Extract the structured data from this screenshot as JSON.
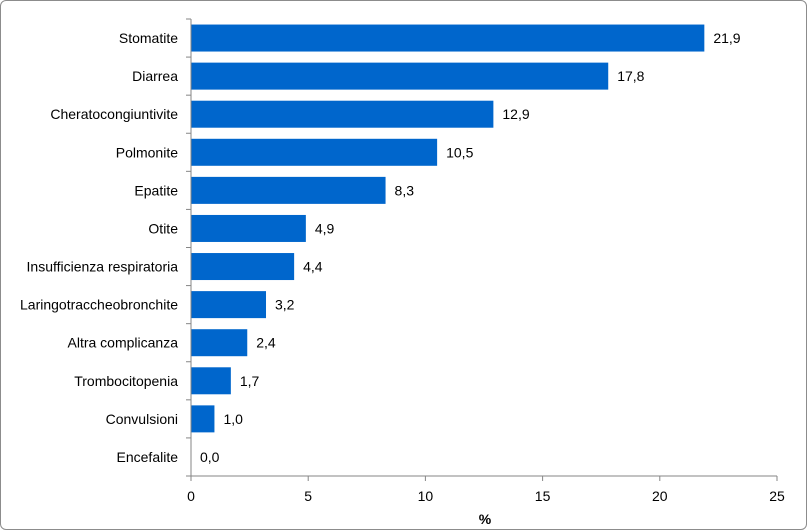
{
  "chart_data": {
    "type": "bar",
    "orientation": "horizontal",
    "categories": [
      "Stomatite",
      "Diarrea",
      "Cheratocongiuntivite",
      "Polmonite",
      "Epatite",
      "Otite",
      "Insufficienza respiratoria",
      "Laringotraccheobronchite",
      "Altra complicanza",
      "Trombocitopenia",
      "Convulsioni",
      "Encefalite"
    ],
    "values": [
      21.9,
      17.8,
      12.9,
      10.5,
      8.3,
      4.9,
      4.4,
      3.2,
      2.4,
      1.7,
      1.0,
      0.0
    ],
    "value_labels": [
      "21,9",
      "17,8",
      "12,9",
      "10,5",
      "8,3",
      "4,9",
      "4,4",
      "3,2",
      "2,4",
      "1,7",
      "1,0",
      "0,0"
    ],
    "xlabel": "%",
    "ylabel": "",
    "xlim": [
      0,
      25
    ],
    "xticks": [
      0,
      5,
      10,
      15,
      20,
      25
    ],
    "grid": false,
    "bar_color": "#0066cc"
  }
}
